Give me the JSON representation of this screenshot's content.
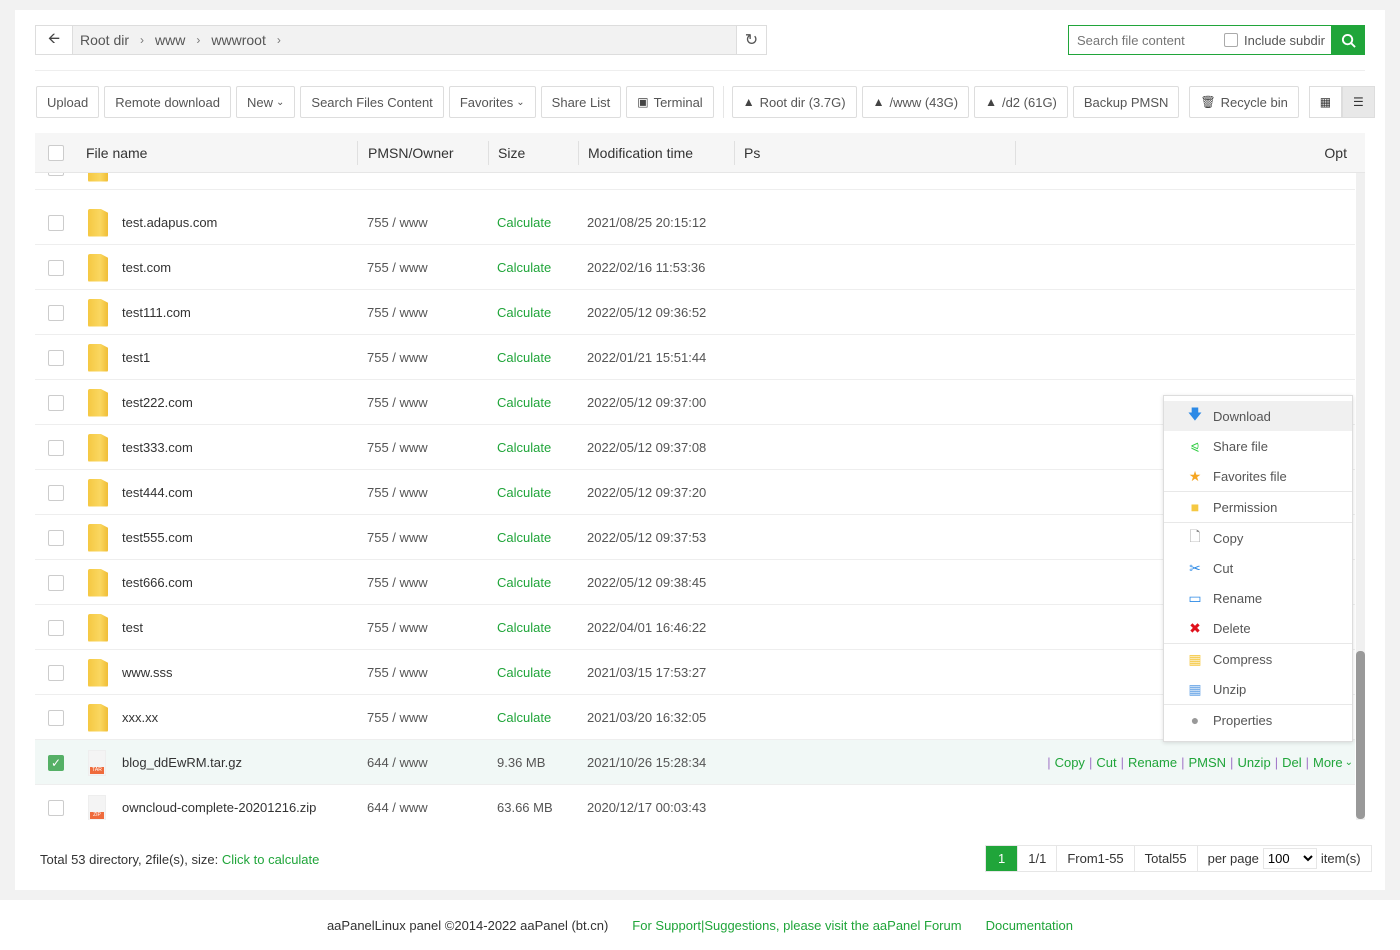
{
  "path": {
    "crumbs": [
      "Root dir",
      "www",
      "wwwroot"
    ]
  },
  "search": {
    "placeholder": "Search file content",
    "include_label": "Include subdir"
  },
  "toolbar": {
    "upload": "Upload",
    "remote": "Remote download",
    "new": "New",
    "search_content": "Search Files Content",
    "favorites": "Favorites",
    "share_list": "Share List",
    "terminal": "Terminal",
    "disks": [
      "Root dir (3.7G)",
      "/www (43G)",
      "/d2 (61G)"
    ],
    "backup": "Backup PMSN",
    "recycle": "Recycle bin"
  },
  "table": {
    "headers": {
      "name": "File name",
      "pmsn": "PMSN/Owner",
      "size": "Size",
      "mtime": "Modification time",
      "ps": "Ps",
      "opt": "Opt"
    },
    "rows": [
      {
        "name": "test.adapus.com",
        "pmsn": "755 / www",
        "size": "Calculate",
        "mtime": "2021/08/25 20:15:12",
        "type": "folder"
      },
      {
        "name": "test.com",
        "pmsn": "755 / www",
        "size": "Calculate",
        "mtime": "2022/02/16 11:53:36",
        "type": "folder"
      },
      {
        "name": "test111.com",
        "pmsn": "755 / www",
        "size": "Calculate",
        "mtime": "2022/05/12 09:36:52",
        "type": "folder"
      },
      {
        "name": "test1",
        "pmsn": "755 / www",
        "size": "Calculate",
        "mtime": "2022/01/21 15:51:44",
        "type": "folder"
      },
      {
        "name": "test222.com",
        "pmsn": "755 / www",
        "size": "Calculate",
        "mtime": "2022/05/12 09:37:00",
        "type": "folder"
      },
      {
        "name": "test333.com",
        "pmsn": "755 / www",
        "size": "Calculate",
        "mtime": "2022/05/12 09:37:08",
        "type": "folder"
      },
      {
        "name": "test444.com",
        "pmsn": "755 / www",
        "size": "Calculate",
        "mtime": "2022/05/12 09:37:20",
        "type": "folder"
      },
      {
        "name": "test555.com",
        "pmsn": "755 / www",
        "size": "Calculate",
        "mtime": "2022/05/12 09:37:53",
        "type": "folder"
      },
      {
        "name": "test666.com",
        "pmsn": "755 / www",
        "size": "Calculate",
        "mtime": "2022/05/12 09:38:45",
        "type": "folder"
      },
      {
        "name": "test",
        "pmsn": "755 / www",
        "size": "Calculate",
        "mtime": "2022/04/01 16:46:22",
        "type": "folder"
      },
      {
        "name": "www.sss",
        "pmsn": "755 / www",
        "size": "Calculate",
        "mtime": "2021/03/15 17:53:27",
        "type": "folder"
      },
      {
        "name": "xxx.xx",
        "pmsn": "755 / www",
        "size": "Calculate",
        "mtime": "2021/03/20 16:32:05",
        "type": "folder"
      },
      {
        "name": "blog_ddEwRM.tar.gz",
        "pmsn": "644 / www",
        "size": "9.36 MB",
        "mtime": "2021/10/26 15:28:34",
        "type": "file",
        "badge": "TAR",
        "checked": true
      },
      {
        "name": "owncloud-complete-20201216.zip",
        "pmsn": "644 / www",
        "size": "63.66 MB",
        "mtime": "2020/12/17 00:03:43",
        "type": "file",
        "badge": "ZIP"
      }
    ],
    "row_ops": [
      "Copy",
      "Cut",
      "Rename",
      "PMSN",
      "Unzip",
      "Del",
      "More"
    ]
  },
  "context_menu": [
    [
      {
        "label": "Download",
        "icon": "download-icon",
        "color": "#2d8ae6"
      },
      {
        "label": "Share file",
        "icon": "share-icon",
        "color": "#2ecc40"
      },
      {
        "label": "Favorites file",
        "icon": "star-icon",
        "color": "#f5a623"
      }
    ],
    [
      {
        "label": "Permission",
        "icon": "permission-folder-icon",
        "color": "#f5c842"
      }
    ],
    [
      {
        "label": "Copy",
        "icon": "copy-icon",
        "color": "#888"
      },
      {
        "label": "Cut",
        "icon": "scissors-icon",
        "color": "#2d8ae6"
      },
      {
        "label": "Rename",
        "icon": "rename-icon",
        "color": "#2d8ae6"
      },
      {
        "label": "Delete",
        "icon": "delete-x-icon",
        "color": "#e0111c"
      }
    ],
    [
      {
        "label": "Compress",
        "icon": "compress-icon",
        "color": "#f5c842"
      },
      {
        "label": "Unzip",
        "icon": "unzip-icon",
        "color": "#6aa6e6"
      }
    ],
    [
      {
        "label": "Properties",
        "icon": "properties-icon",
        "color": "#999"
      }
    ]
  ],
  "summary": {
    "text": "Total 53 directory, 2file(s), size:",
    "link": "Click to calculate"
  },
  "pager": {
    "current": "1",
    "pages": "1/1",
    "range": "From1-55",
    "total": "Total55",
    "per_page_label": "per page",
    "per_page": "100",
    "items_label": "item(s)"
  },
  "footer": {
    "copyright": "aaPanelLinux panel ©2014-2022 aaPanel (bt.cn)",
    "support": "For Support|Suggestions, please visit the aaPanel Forum",
    "docs": "Documentation"
  },
  "colors": {
    "accent": "#20a53a",
    "selected_row": "#f1f8f6"
  }
}
